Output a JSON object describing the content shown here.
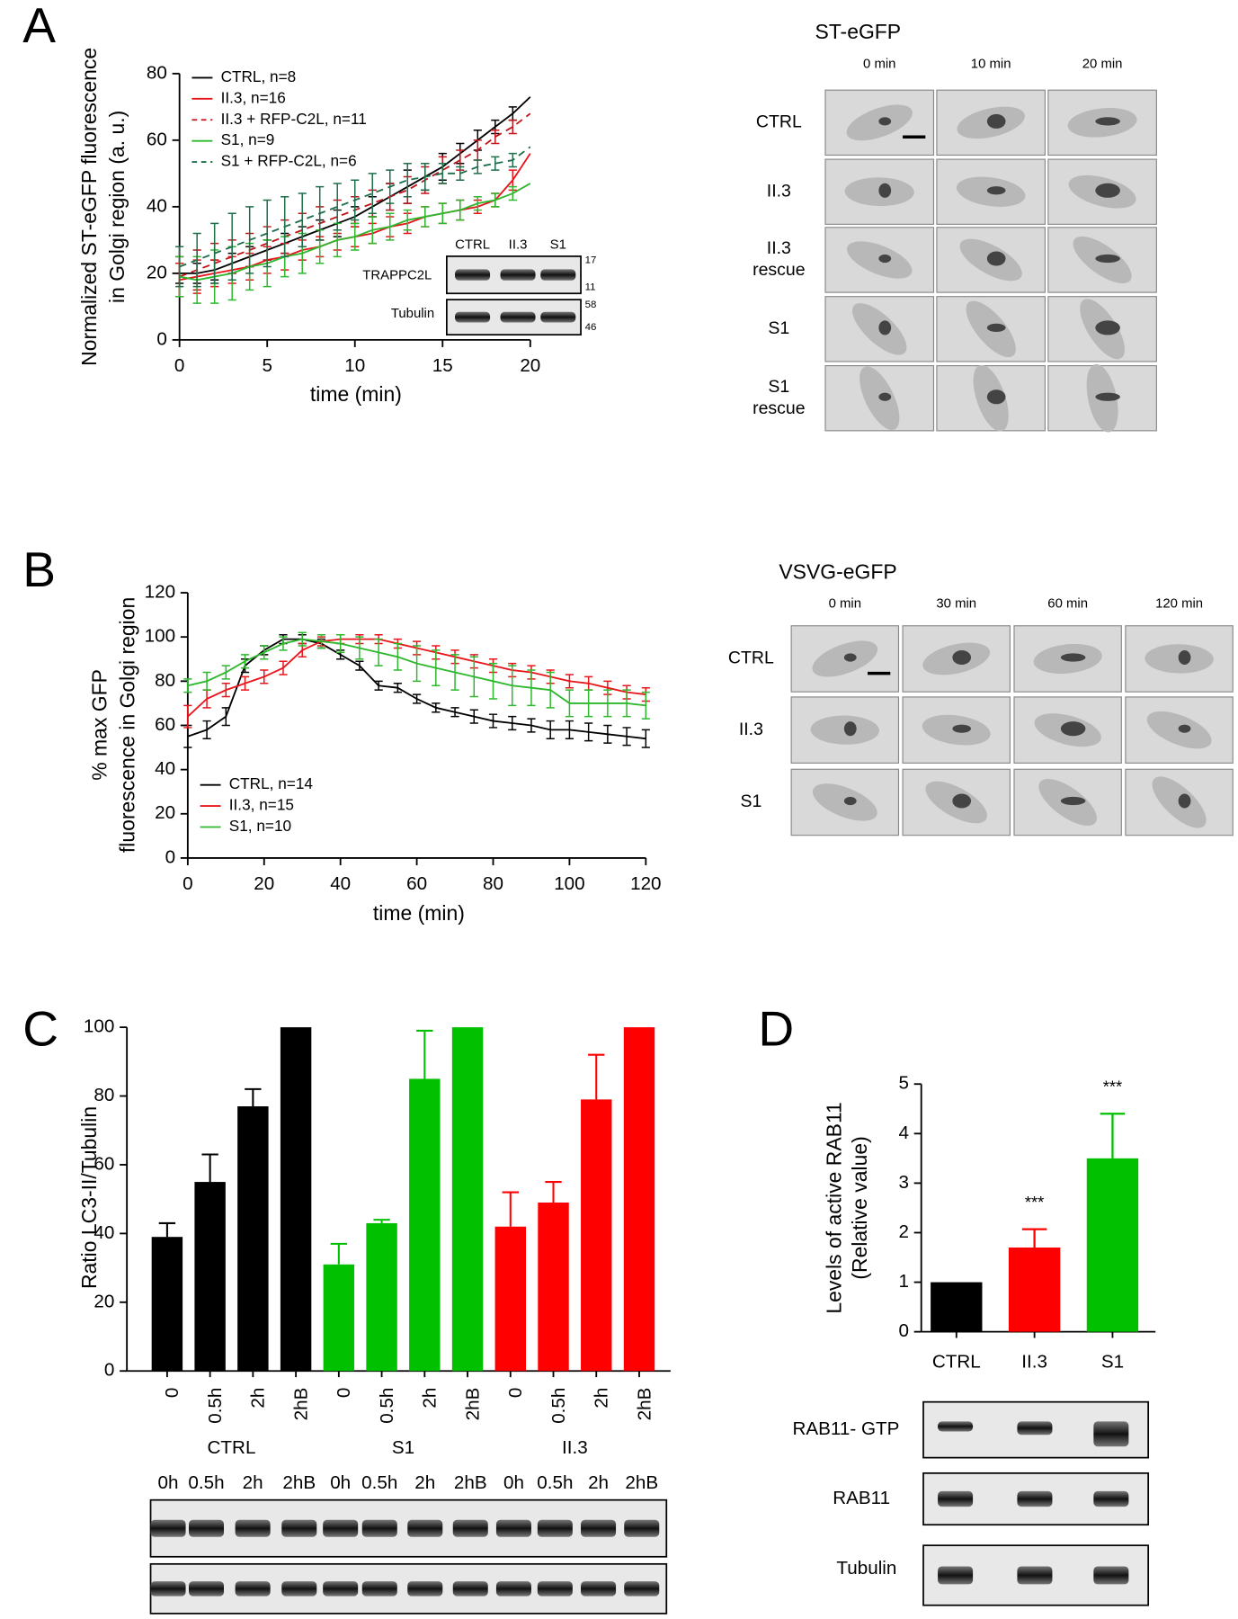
{
  "chart_data": [
    {
      "type": "line",
      "ylabel": [
        "Normalized ST-eGFP fluorescence",
        "in Golgi region (a. u.)"
      ],
      "xlabel": "time (min)",
      "x": [
        0,
        1,
        2,
        3,
        4,
        5,
        6,
        7,
        8,
        9,
        10,
        11,
        12,
        13,
        14,
        15,
        16,
        17,
        18,
        19,
        20
      ],
      "xlim": [
        0,
        20
      ],
      "ylim": [
        0,
        80
      ],
      "xticks": [
        0,
        5,
        10,
        15,
        20
      ],
      "yticks": [
        0,
        20,
        40,
        60,
        80
      ],
      "legend": "upper left",
      "series": [
        {
          "name": "CTRL, n=8",
          "color": "#000000",
          "linestyle": "solid",
          "values": [
            20,
            20,
            21,
            23,
            25,
            27,
            29,
            31,
            33,
            35,
            37,
            40,
            43,
            46,
            49,
            52,
            56,
            60,
            64,
            68,
            73
          ],
          "errors": [
            3,
            3,
            3,
            3,
            3,
            3,
            3,
            3,
            3,
            4,
            3,
            3,
            4,
            5,
            4,
            4,
            3,
            3,
            2,
            2,
            null
          ]
        },
        {
          "name": "II.3, n=16",
          "color": "#e8151b",
          "linestyle": "solid",
          "values": [
            18,
            19,
            20,
            21,
            22,
            24,
            25,
            27,
            28,
            30,
            31,
            32,
            34,
            35,
            37,
            38,
            39,
            40,
            42,
            48,
            56
          ],
          "errors": [
            5,
            5,
            4,
            4,
            4,
            4,
            4,
            3,
            3,
            3,
            3,
            3,
            3,
            3,
            3,
            3,
            3,
            2,
            2,
            3,
            null
          ]
        },
        {
          "name": "II.3 + RFP-C2L, n=11",
          "color": "#c0141a",
          "linestyle": "dashed",
          "values": [
            19,
            21,
            23,
            25,
            27,
            29,
            31,
            33,
            35,
            37,
            39,
            41,
            43,
            45,
            48,
            51,
            54,
            57,
            61,
            64,
            68
          ],
          "errors": [
            6,
            6,
            6,
            5,
            5,
            5,
            5,
            5,
            5,
            5,
            4,
            4,
            4,
            4,
            4,
            4,
            3,
            3,
            2,
            2,
            null
          ]
        },
        {
          "name": "S1, n=9",
          "color": "#2db82d",
          "linestyle": "solid",
          "values": [
            19,
            18,
            19,
            20,
            22,
            23,
            25,
            26,
            28,
            30,
            31,
            33,
            34,
            36,
            37,
            38,
            39,
            41,
            42,
            44,
            47
          ],
          "errors": [
            6,
            7,
            8,
            8,
            7,
            7,
            6,
            6,
            5,
            5,
            4,
            4,
            4,
            3,
            3,
            3,
            3,
            2,
            2,
            2,
            null
          ]
        },
        {
          "name": "S1 + RFP-C2L, n=6",
          "color": "#1e6e4a",
          "linestyle": "dashed",
          "values": [
            22,
            24,
            26,
            28,
            30,
            32,
            34,
            36,
            38,
            40,
            42,
            44,
            46,
            48,
            49,
            50,
            50,
            52,
            53,
            54,
            58
          ],
          "errors": [
            6,
            8,
            9,
            10,
            10,
            10,
            9,
            8,
            8,
            7,
            6,
            6,
            5,
            5,
            4,
            3,
            2,
            2,
            2,
            2,
            null
          ]
        }
      ]
    },
    {
      "type": "line",
      "ylabel": [
        "% max GFP",
        "fluorescence in Golgi region"
      ],
      "xlabel": "time (min)",
      "x": [
        0,
        5,
        10,
        15,
        20,
        25,
        30,
        35,
        40,
        45,
        50,
        55,
        60,
        65,
        70,
        75,
        80,
        85,
        90,
        95,
        100,
        105,
        110,
        115,
        120
      ],
      "xlim": [
        0,
        120
      ],
      "ylim": [
        0,
        120
      ],
      "xticks": [
        0,
        20,
        40,
        60,
        80,
        100,
        120
      ],
      "yticks": [
        0,
        20,
        40,
        60,
        80,
        100,
        120
      ],
      "legend": "lower left",
      "series": [
        {
          "name": "CTRL, n=14",
          "color": "#000000",
          "linestyle": "solid",
          "values": [
            55,
            58,
            64,
            87,
            94,
            99,
            99,
            97,
            92,
            87,
            78,
            77,
            72,
            68,
            66,
            64,
            62,
            61,
            60,
            58,
            58,
            57,
            56,
            55,
            54
          ],
          "errors": [
            5,
            4,
            4,
            3,
            2,
            2,
            2,
            2,
            2,
            2,
            2,
            2,
            2,
            2,
            2,
            3,
            3,
            3,
            3,
            4,
            4,
            4,
            4,
            4,
            4
          ]
        },
        {
          "name": "II.3, n=15",
          "color": "#e8151b",
          "linestyle": "solid",
          "values": [
            64,
            72,
            76,
            79,
            82,
            86,
            94,
            98,
            99,
            99,
            99,
            97,
            95,
            93,
            91,
            89,
            87,
            85,
            84,
            82,
            80,
            79,
            77,
            75,
            74
          ],
          "errors": [
            5,
            4,
            3,
            3,
            3,
            3,
            3,
            2,
            2,
            2,
            2,
            2,
            3,
            3,
            3,
            3,
            3,
            3,
            3,
            3,
            3,
            3,
            3,
            3,
            3
          ]
        },
        {
          "name": "S1, n=10",
          "color": "#2db82d",
          "linestyle": "solid",
          "values": [
            78,
            80,
            84,
            89,
            93,
            97,
            99,
            98,
            97,
            95,
            93,
            91,
            88,
            86,
            84,
            82,
            80,
            78,
            77,
            76,
            70,
            70,
            70,
            70,
            69
          ],
          "errors": [
            3,
            4,
            3,
            3,
            3,
            3,
            3,
            3,
            4,
            5,
            6,
            6,
            8,
            8,
            8,
            9,
            8,
            9,
            8,
            8,
            6,
            6,
            6,
            6,
            6
          ]
        }
      ]
    },
    {
      "type": "grouped_bar",
      "ylabel": [
        "Ratio LC3-II/Tubulin"
      ],
      "categories": [
        "0",
        "0.5h",
        "2h",
        "2hB",
        "0",
        "0.5h",
        "2h",
        "2hB",
        "0",
        "0.5h",
        "2h",
        "2hB"
      ],
      "groups": [
        "CTRL",
        "S1",
        "II.3"
      ],
      "group_colors": [
        "#000000",
        "#00c000",
        "#ff0000"
      ],
      "values": [
        39,
        55,
        77,
        100,
        31,
        43,
        85,
        100,
        42,
        49,
        79,
        100
      ],
      "errors": [
        4,
        8,
        5,
        null,
        6,
        1,
        14,
        null,
        10,
        6,
        13,
        null
      ],
      "ylim": [
        0,
        100
      ],
      "yticks": [
        0,
        20,
        40,
        60,
        80,
        100
      ]
    },
    {
      "type": "bar",
      "ylabel": [
        "Levels of active RAB11",
        "(Relative value)"
      ],
      "categories": [
        "CTRL",
        "II.3",
        "S1"
      ],
      "colors": [
        "#000000",
        "#ff0000",
        "#00c000"
      ],
      "values": [
        1,
        1.7,
        3.5
      ],
      "errors": [
        null,
        0.37,
        0.9
      ],
      "annotations": [
        null,
        "***",
        "***"
      ],
      "ylim": [
        0,
        5
      ],
      "yticks": [
        0,
        1,
        2,
        3,
        4,
        5
      ]
    }
  ],
  "panel_letters": [
    "A",
    "B",
    "C",
    "D"
  ],
  "micrographs": [
    {
      "title": "ST-eGFP",
      "times": [
        "0 min",
        "10 min",
        "20 min"
      ],
      "rows": [
        [
          "CTRL"
        ],
        [
          "II.3"
        ],
        [
          "II.3",
          "rescue"
        ],
        [
          "S1"
        ],
        [
          "S1",
          "rescue"
        ]
      ]
    },
    {
      "title": "VSVG-eGFP",
      "times": [
        "0 min",
        "30 min",
        "60 min",
        "120 min"
      ],
      "rows": [
        [
          "CTRL"
        ],
        [
          "II.3"
        ],
        [
          "S1"
        ]
      ]
    }
  ],
  "blots": [
    {
      "lanes": [
        "CTRL",
        "II.3",
        "S1"
      ],
      "rows": [
        "TRAPPC2L",
        "Tubulin"
      ],
      "markers": [
        17,
        11,
        58,
        46
      ]
    },
    {
      "lanes": [
        "0h",
        "0.5h",
        "2h",
        "2hB",
        "0h",
        "0.5h",
        "2h",
        "2hB",
        "0h",
        "0.5h",
        "2h",
        "2hB"
      ]
    },
    {
      "rows": [
        "RAB11- GTP",
        "RAB11",
        "Tubulin"
      ]
    }
  ]
}
